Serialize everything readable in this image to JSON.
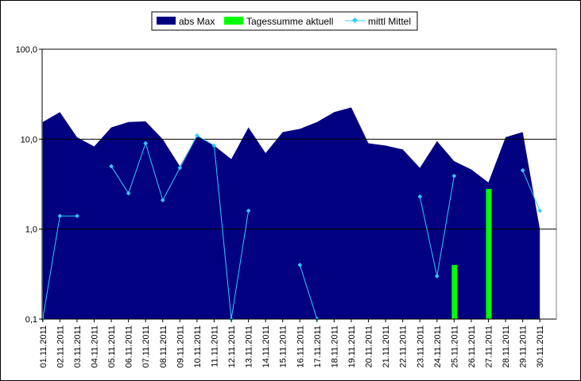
{
  "chart_data": {
    "type": "area",
    "title": "",
    "xlabel": "",
    "ylabel": "",
    "yscale": "log",
    "ylim": [
      0.1,
      100
    ],
    "yticks": [
      "0,1",
      "1,0",
      "10,0",
      "100,0"
    ],
    "ytick_values": [
      0.1,
      1,
      10,
      100
    ],
    "grid": "horizontal major lines",
    "legend_position": "top-center",
    "categories": [
      "01.11.2011",
      "02.11.2011",
      "03.11.2011",
      "04.11.2011",
      "05.11.2011",
      "06.11.2011",
      "07.11.2011",
      "08.11.2011",
      "09.11.2011",
      "10.11.2011",
      "11.11.2011",
      "12.11.2011",
      "13.11.2011",
      "14.11.2011",
      "15.11.2011",
      "16.11.2011",
      "17.11.2011",
      "18.11.2011",
      "19.11.2011",
      "20.11.2011",
      "21.11.2011",
      "22.11.2011",
      "23.11.2011",
      "24.11.2011",
      "25.11.2011",
      "26.11.2011",
      "27.11.2011",
      "28.11.2011",
      "29.11.2011",
      "30.11.2011"
    ],
    "series": [
      {
        "name": "abs Max",
        "kind": "area",
        "color": "#000080",
        "values": [
          15.5,
          20,
          10.5,
          8.3,
          13.5,
          15.5,
          15.8,
          10,
          5,
          11,
          8.5,
          6,
          13.5,
          7,
          12,
          13,
          15.5,
          20,
          22.5,
          9,
          8.5,
          7.7,
          4.8,
          9.5,
          5.7,
          4.6,
          3.3,
          10.5,
          12,
          1
        ]
      },
      {
        "name": "Tagessumme aktuell",
        "kind": "bar",
        "color": "#00ff00",
        "values": [
          null,
          null,
          null,
          null,
          null,
          null,
          null,
          null,
          null,
          null,
          null,
          null,
          null,
          null,
          null,
          null,
          null,
          null,
          null,
          null,
          null,
          null,
          null,
          null,
          0.4,
          null,
          2.8,
          null,
          null,
          null
        ]
      },
      {
        "name": "mittl Mittel",
        "kind": "line",
        "color": "#33ccff",
        "values": [
          0.1,
          1.4,
          1.4,
          null,
          5,
          2.5,
          9,
          2.1,
          4.8,
          11,
          8.5,
          0.1,
          1.6,
          null,
          null,
          0.4,
          0.1,
          null,
          null,
          null,
          null,
          null,
          2.3,
          0.3,
          3.9,
          null,
          null,
          null,
          4.5,
          1.6
        ]
      }
    ]
  },
  "colors": {
    "background": "#ffffff",
    "plot_border": "#808080",
    "gridline": "#000000"
  }
}
